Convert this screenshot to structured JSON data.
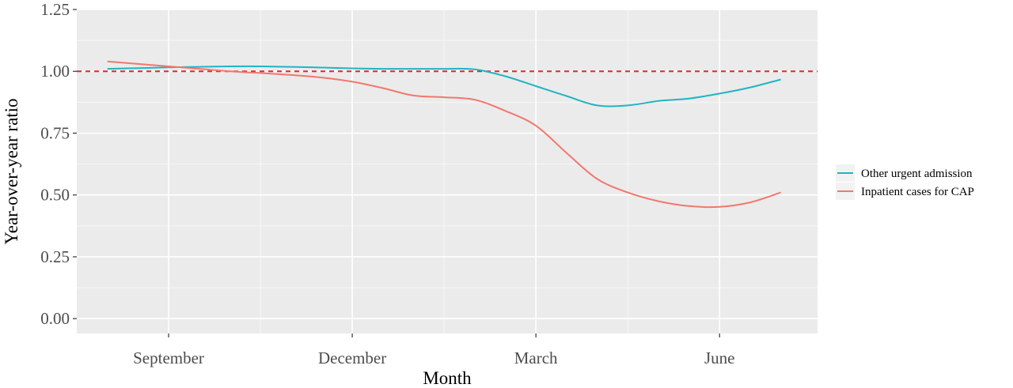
{
  "chart_data": {
    "type": "line",
    "xlabel": "Month",
    "ylabel": "Year-over-year ratio",
    "x_ticks": [
      "September",
      "December",
      "March",
      "June"
    ],
    "x_tick_positions": [
      1,
      4,
      7,
      10
    ],
    "xlim": [
      -0.5,
      11.6
    ],
    "ylim": [
      -0.06,
      1.25
    ],
    "y_ticks": [
      0.0,
      0.25,
      0.5,
      0.75,
      1.0,
      1.25
    ],
    "y_tick_labels": [
      "0.00",
      "0.25",
      "0.50",
      "0.75",
      "1.00",
      "1.25"
    ],
    "grid": true,
    "reference_line": {
      "y": 1.0,
      "style": "dashed",
      "color": "#e8262a"
    },
    "legend_position": "right",
    "series": [
      {
        "name": "Other urgent admission",
        "color": "#1fb5c2",
        "x": [
          0.0,
          0.5,
          1.0,
          1.5,
          2.0,
          2.5,
          3.0,
          3.5,
          4.0,
          4.5,
          5.0,
          5.5,
          6.0,
          6.5,
          7.0,
          7.5,
          8.0,
          8.5,
          9.0,
          9.5,
          10.0,
          10.5,
          11.0
        ],
        "values": [
          1.01,
          1.013,
          1.016,
          1.018,
          1.02,
          1.02,
          1.018,
          1.015,
          1.012,
          1.01,
          1.01,
          1.01,
          1.008,
          0.98,
          0.94,
          0.9,
          0.862,
          0.862,
          0.88,
          0.89,
          0.91,
          0.935,
          0.967
        ]
      },
      {
        "name": "Inpatient cases for CAP",
        "color": "#f2776d",
        "x": [
          0.0,
          0.5,
          1.0,
          1.5,
          2.0,
          2.5,
          3.0,
          3.5,
          4.0,
          4.5,
          5.0,
          5.5,
          6.0,
          6.5,
          7.0,
          7.5,
          8.0,
          8.5,
          9.0,
          9.5,
          10.0,
          10.5,
          11.0
        ],
        "values": [
          1.04,
          1.03,
          1.02,
          1.01,
          1.0,
          0.993,
          0.985,
          0.975,
          0.958,
          0.932,
          0.902,
          0.895,
          0.885,
          0.84,
          0.78,
          0.67,
          0.565,
          0.51,
          0.475,
          0.455,
          0.452,
          0.47,
          0.51
        ]
      }
    ]
  }
}
